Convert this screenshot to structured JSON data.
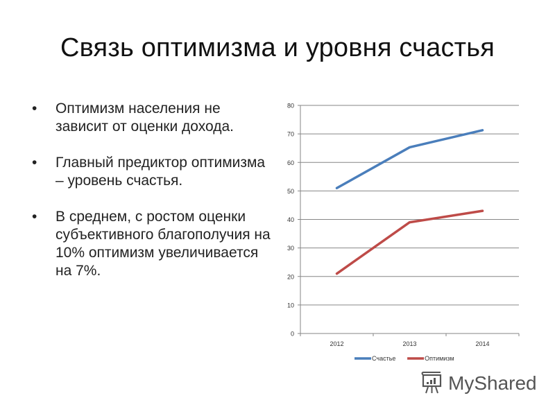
{
  "slide": {
    "title": "Связь оптимизма и уровня счастья",
    "bullets": [
      {
        "text": "Оптимизм населения не зависит от оценки дохода."
      },
      {
        "text": "Главный предиктор оптимизма – уровень счастья."
      },
      {
        "text": "В среднем, с ростом оценки субъективного благополучия на 10% оптимизм увеличивается на 7%."
      }
    ],
    "bullet_glyph": "•"
  },
  "watermark": {
    "text": "MyShared",
    "icon": "presentation-board-icon"
  },
  "colors": {
    "series_happiness": "#4a7ebb",
    "series_optimism": "#be4b48",
    "gridline": "#868686",
    "text": "#222222"
  },
  "chart_data": {
    "type": "line",
    "title": "",
    "xlabel": "",
    "ylabel": "",
    "categories": [
      "2012",
      "2013",
      "2014"
    ],
    "series": [
      {
        "name": "Счастье",
        "values": [
          51,
          65.3,
          71.3
        ],
        "color": "#4a7ebb"
      },
      {
        "name": "Оптимизм",
        "values": [
          21,
          39,
          43
        ],
        "color": "#be4b48"
      }
    ],
    "ylim": [
      0,
      80
    ],
    "yticks": [
      0,
      10,
      20,
      30,
      40,
      50,
      60,
      70,
      80
    ],
    "grid": true,
    "legend_position": "bottom"
  }
}
